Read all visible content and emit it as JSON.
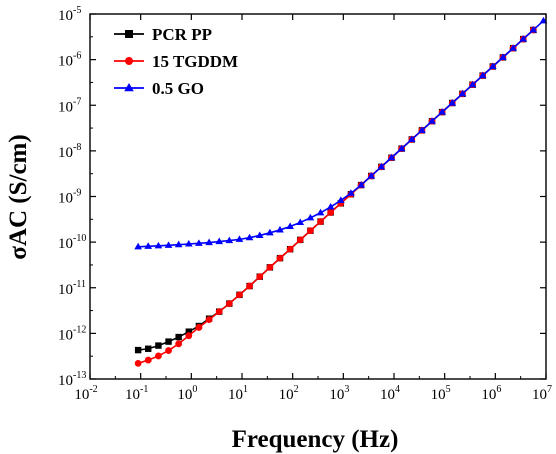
{
  "chart_data": {
    "type": "line",
    "title": "",
    "xlabel": "Frequency (Hz)",
    "ylabel": "σAC (S/cm)",
    "x_scale": "log",
    "y_scale": "log",
    "xlim": [
      0.01,
      10000000
    ],
    "ylim": [
      1e-13,
      1e-05
    ],
    "grid": false,
    "legend_position": "top-left",
    "x_ticks": [
      {
        "base": "10",
        "exp": "-2",
        "value": 0.01
      },
      {
        "base": "10",
        "exp": "-1",
        "value": 0.1
      },
      {
        "base": "10",
        "exp": "0",
        "value": 1
      },
      {
        "base": "10",
        "exp": "1",
        "value": 10
      },
      {
        "base": "10",
        "exp": "2",
        "value": 100
      },
      {
        "base": "10",
        "exp": "3",
        "value": 1000
      },
      {
        "base": "10",
        "exp": "4",
        "value": 10000
      },
      {
        "base": "10",
        "exp": "5",
        "value": 100000
      },
      {
        "base": "10",
        "exp": "6",
        "value": 1000000
      },
      {
        "base": "10",
        "exp": "7",
        "value": 10000000
      }
    ],
    "y_ticks": [
      {
        "base": "10",
        "exp": "-13",
        "value": 1e-13
      },
      {
        "base": "10",
        "exp": "-12",
        "value": 1e-12
      },
      {
        "base": "10",
        "exp": "-11",
        "value": 1e-11
      },
      {
        "base": "10",
        "exp": "-10",
        "value": 1e-10
      },
      {
        "base": "10",
        "exp": "-9",
        "value": 1e-09
      },
      {
        "base": "10",
        "exp": "-8",
        "value": 1e-08
      },
      {
        "base": "10",
        "exp": "-7",
        "value": 1e-07
      },
      {
        "base": "10",
        "exp": "-6",
        "value": 1e-06
      },
      {
        "base": "10",
        "exp": "-5",
        "value": 1e-05
      }
    ],
    "series": [
      {
        "name": "PCR PP",
        "color": "#000000",
        "marker": "square",
        "x": [
          0.0891,
          0.141,
          0.224,
          0.355,
          0.562,
          0.891,
          1.41,
          2.24,
          3.55,
          5.62,
          8.91,
          14.1,
          22.4,
          35.5,
          56.2,
          89.1,
          141,
          224,
          355,
          562,
          891,
          1410,
          2240,
          3550,
          5620,
          8910,
          14100,
          22400,
          35500,
          56200,
          89100,
          141000,
          224000,
          355000,
          562000,
          891000,
          1410000,
          2240000,
          3550000,
          5620000
        ],
        "y": [
          4.3e-13,
          4.6e-13,
          5.4e-13,
          6.6e-13,
          8.3e-13,
          1.09e-12,
          1.45e-12,
          2.1e-12,
          3e-12,
          4.5e-12,
          7e-12,
          1.09e-11,
          1.75e-11,
          2.8e-11,
          4.45e-11,
          7e-11,
          1.12e-10,
          1.78e-10,
          2.82e-10,
          4.47e-10,
          7.08e-10,
          1.12e-09,
          1.78e-09,
          2.82e-09,
          4.47e-09,
          7.08e-09,
          1.12e-08,
          1.78e-08,
          2.82e-08,
          4.47e-08,
          7.08e-08,
          1.12e-07,
          1.78e-07,
          2.82e-07,
          4.47e-07,
          7.08e-07,
          1.12e-06,
          1.78e-06,
          2.82e-06,
          4.47e-06
        ]
      },
      {
        "name": "15 TGDDM",
        "color": "#ff0000",
        "marker": "circle",
        "x": [
          0.0891,
          0.141,
          0.224,
          0.355,
          0.562,
          0.891,
          1.41,
          2.24,
          3.55,
          5.62,
          8.91,
          14.1,
          22.4,
          35.5,
          56.2,
          89.1,
          141,
          224,
          355,
          562,
          891,
          1410,
          2240,
          3550,
          5620,
          8910,
          14100,
          22400,
          35500,
          56200,
          89100,
          141000,
          224000,
          355000,
          562000,
          891000,
          1410000,
          2240000,
          3550000,
          5620000
        ],
        "y": [
          2.2e-13,
          2.6e-13,
          3.2e-13,
          4.2e-13,
          5.9e-13,
          8.9e-13,
          1.35e-12,
          2e-12,
          3e-12,
          4.5e-12,
          7e-12,
          1.09e-11,
          1.75e-11,
          2.8e-11,
          4.45e-11,
          7e-11,
          1.12e-10,
          1.78e-10,
          2.82e-10,
          4.47e-10,
          7.08e-10,
          1.12e-09,
          1.78e-09,
          2.82e-09,
          4.47e-09,
          7.08e-09,
          1.12e-08,
          1.78e-08,
          2.82e-08,
          4.47e-08,
          7.08e-08,
          1.12e-07,
          1.78e-07,
          2.82e-07,
          4.47e-07,
          7.08e-07,
          1.12e-06,
          1.78e-06,
          2.82e-06,
          4.47e-06
        ]
      },
      {
        "name": "0.5 GO",
        "color": "#0000ff",
        "marker": "triangle",
        "x": [
          0.0891,
          0.141,
          0.224,
          0.355,
          0.562,
          0.891,
          1.41,
          2.24,
          3.55,
          5.62,
          8.91,
          14.1,
          22.4,
          35.5,
          56.2,
          89.1,
          141,
          224,
          355,
          562,
          891,
          1410,
          2240,
          3550,
          5620,
          8910,
          14100,
          22400,
          35500,
          56200,
          89100,
          141000,
          224000,
          355000,
          562000,
          891000,
          1410000,
          2240000,
          3550000,
          5620000,
          8910000
        ],
        "y": [
          7.9e-11,
          8.1e-11,
          8.3e-11,
          8.5e-11,
          8.8e-11,
          9.1e-11,
          9.4e-11,
          9.8e-11,
          1.03e-10,
          1.08e-10,
          1.15e-10,
          1.25e-10,
          1.4e-10,
          1.6e-10,
          1.85e-10,
          2.2e-10,
          2.7e-10,
          3.4e-10,
          4.4e-10,
          5.9e-10,
          8.2e-10,
          1.18e-09,
          1.78e-09,
          2.82e-09,
          4.47e-09,
          7.08e-09,
          1.12e-08,
          1.78e-08,
          2.82e-08,
          4.47e-08,
          7.08e-08,
          1.12e-07,
          1.78e-07,
          2.82e-07,
          4.47e-07,
          7.08e-07,
          1.12e-06,
          1.78e-06,
          2.82e-06,
          4.47e-06,
          7.08e-06
        ]
      }
    ]
  }
}
